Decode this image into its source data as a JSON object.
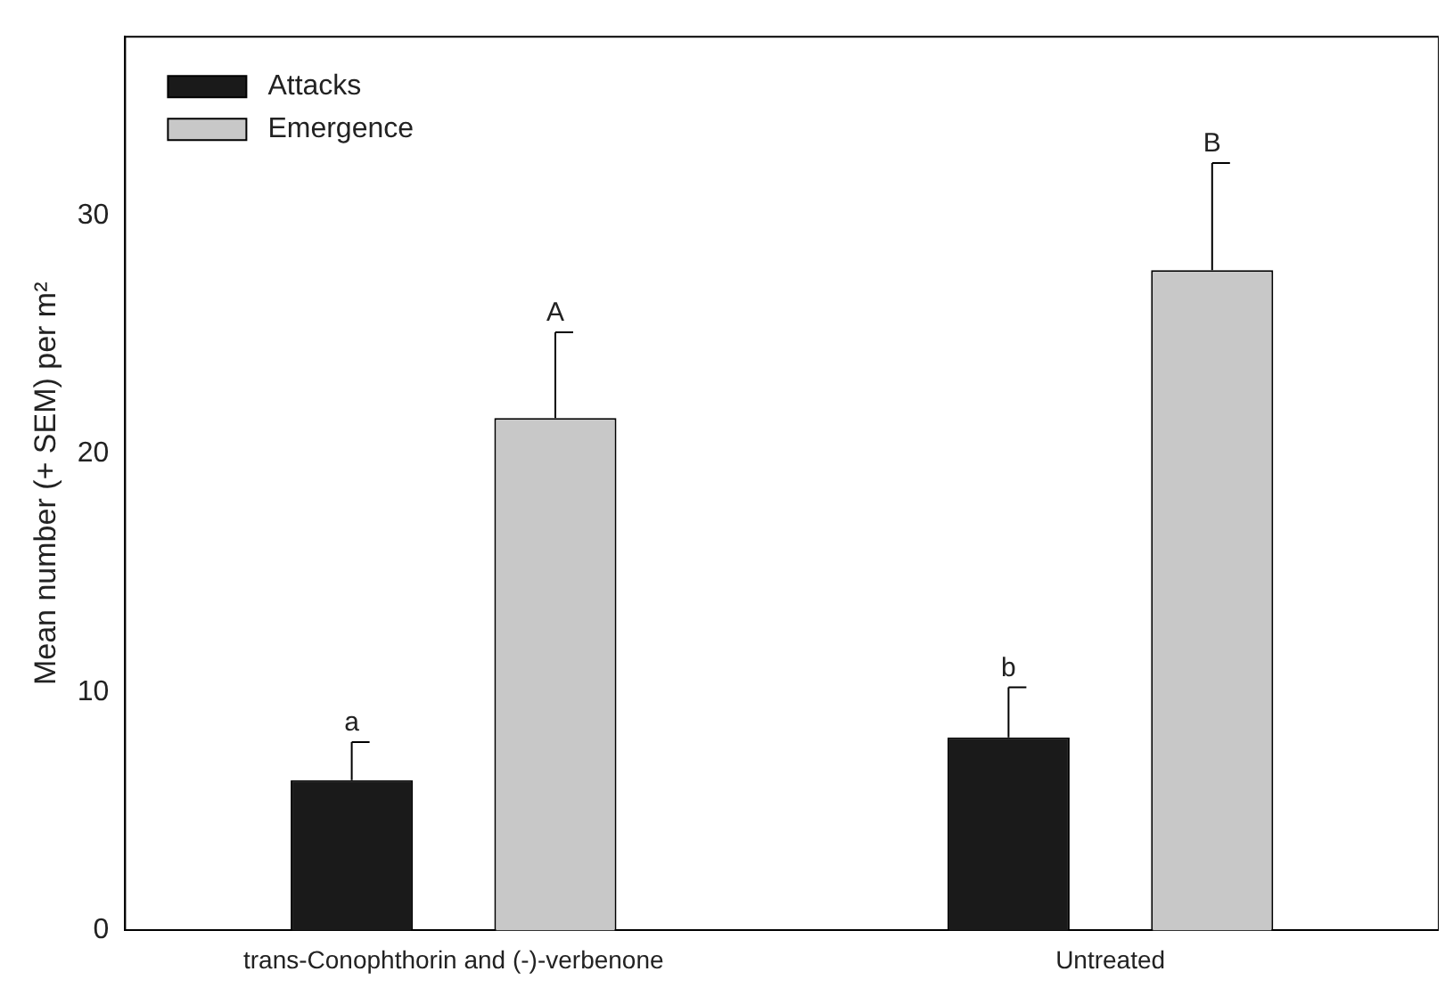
{
  "chart_data": {
    "type": "bar",
    "ylabel": "Mean number (+ SEM) per m²",
    "categories": [
      "trans-Conophthorin and (-)-verbenone",
      "Untreated"
    ],
    "series": [
      {
        "name": "Attacks",
        "color": "#1a1a1a",
        "values": [
          6.3,
          8.1
        ],
        "errors": [
          [
            6.3,
            7.9
          ],
          [
            8.1,
            10.2
          ]
        ]
      },
      {
        "name": "Emergence",
        "color": "#c8c8c8",
        "values": [
          21.5,
          27.7
        ],
        "errors": [
          [
            21.5,
            25.1
          ],
          [
            27.7,
            32.2
          ]
        ]
      }
    ],
    "ylim": [
      0,
      37.5
    ],
    "yticks": [
      0,
      10,
      20,
      30
    ],
    "grid": false,
    "legend": "top left",
    "annotations": [
      "a",
      "A",
      "b",
      "B"
    ]
  }
}
